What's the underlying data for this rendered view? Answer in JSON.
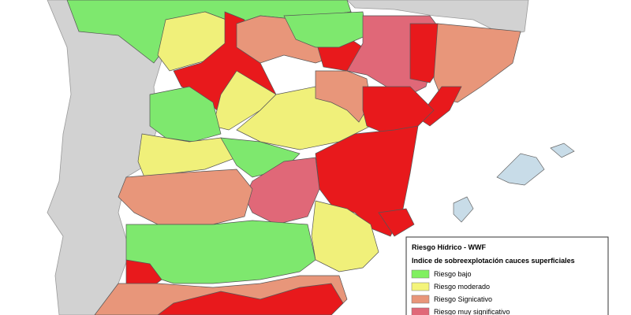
{
  "legend": {
    "title": "Riesgo Hídrico - WWF",
    "subtitle": "Indice de sobreexplotación cauces superficiales",
    "items": [
      {
        "label": "Riesgo bajo",
        "color": "#80f060"
      },
      {
        "label": "Riesgo moderado",
        "color": "#f4f47a"
      },
      {
        "label": "Riesgo Signicativo",
        "color": "#e8967a"
      },
      {
        "label": "Riesgo muy significativo",
        "color": "#e06878"
      }
    ]
  }
}
